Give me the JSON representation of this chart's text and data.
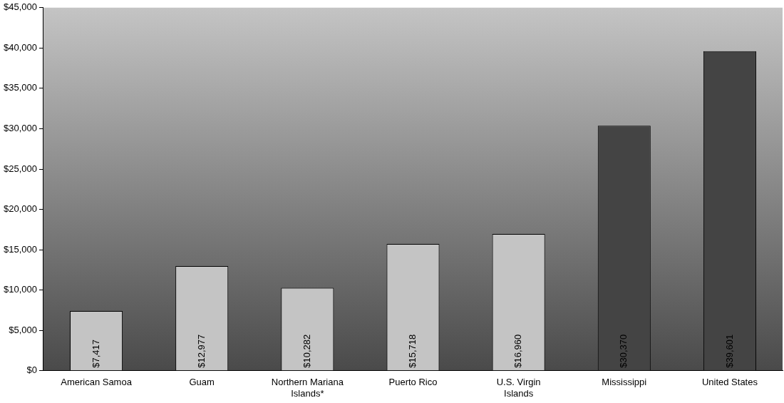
{
  "chart_data": {
    "type": "bar",
    "categories": [
      "American Samoa",
      "Guam",
      "Northern Mariana Islands*",
      "Puerto Rico",
      "U.S. Virgin Islands",
      "Mississippi",
      "United States"
    ],
    "values": [
      7417,
      12977,
      10282,
      15718,
      16960,
      30370,
      39601
    ],
    "value_labels": [
      "$7,417",
      "$12,977",
      "$10,282",
      "$15,718",
      "$16,960",
      "$30,370",
      "$39,601"
    ],
    "colors": [
      "#c4c4c4",
      "#c4c4c4",
      "#c4c4c4",
      "#c4c4c4",
      "#c4c4c4",
      "#444444",
      "#444444"
    ],
    "ylim": [
      0,
      45000
    ],
    "yticks": [
      {
        "value": 0,
        "label": "$0"
      },
      {
        "value": 5000,
        "label": "$5,000"
      },
      {
        "value": 10000,
        "label": "$10,000"
      },
      {
        "value": 15000,
        "label": "$15,000"
      },
      {
        "value": 20000,
        "label": "$20,000"
      },
      {
        "value": 25000,
        "label": "$25,000"
      },
      {
        "value": 30000,
        "label": "$30,000"
      },
      {
        "value": 35000,
        "label": "$35,000"
      },
      {
        "value": 40000,
        "label": "$40,000"
      },
      {
        "value": 45000,
        "label": "$45,000"
      }
    ],
    "grid": false,
    "legend": false
  }
}
